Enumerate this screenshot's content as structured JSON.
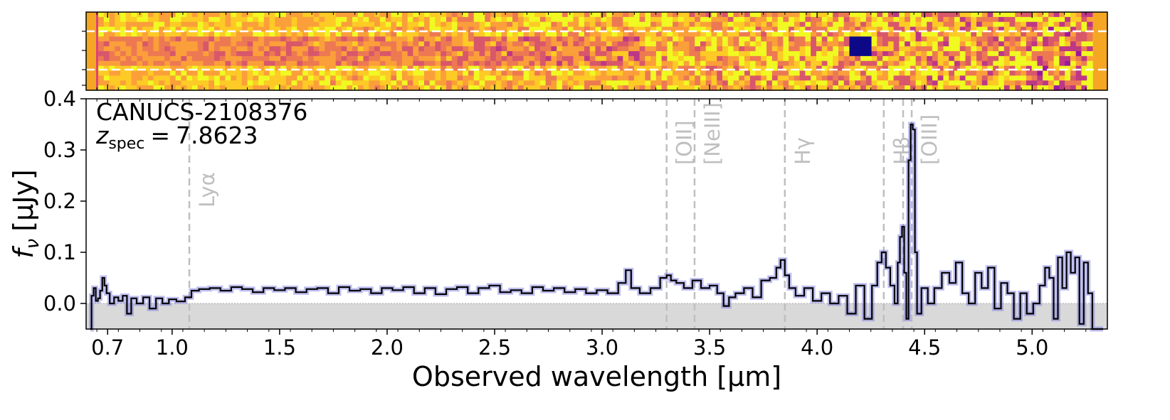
{
  "chart_data": {
    "type": "line",
    "object_name": "CANUCS-2108376",
    "redshift": {
      "symbol": "z",
      "subscript": "spec",
      "equals": "=",
      "value": "7.8623"
    },
    "xlabel": "Observed wavelength [μm]",
    "ylabel_symbol": "f",
    "ylabel_subscript": "ν",
    "ylabel_units": "[μJy]",
    "ylim": [
      -0.05,
      0.4
    ],
    "xlim": [
      0.6,
      5.35
    ],
    "x_ticks": [
      0.7,
      1.0,
      1.5,
      2.0,
      2.5,
      3.0,
      3.5,
      4.0,
      4.5,
      5.0
    ],
    "x_tick_labels": [
      "0.7",
      "1.0",
      "1.5",
      "2.0",
      "2.5",
      "3.0",
      "3.5",
      "4.0",
      "4.5",
      "5.0"
    ],
    "y_ticks": [
      0.0,
      0.1,
      0.2,
      0.3,
      0.4
    ],
    "y_tick_labels": [
      "0.0",
      "0.1",
      "0.2",
      "0.3",
      "0.4"
    ],
    "emission_lines": [
      {
        "label": "Lyα",
        "wavelength": 1.08
      },
      {
        "label": "[OII]",
        "wavelength": 3.3
      },
      {
        "label": "[NeIII]",
        "wavelength": 3.43
      },
      {
        "label": "Hγ",
        "wavelength": 3.85
      },
      {
        "label": "Hβ",
        "wavelength": 4.31
      },
      {
        "label": "",
        "wavelength": 4.4
      },
      {
        "label": "[OIII]",
        "wavelength": 4.44
      }
    ],
    "series": [
      {
        "name": "spectrum",
        "style": "step",
        "color": "#000000",
        "error_color": "#7070e0",
        "points": [
          [
            0.62,
            -0.05
          ],
          [
            0.63,
            0.015
          ],
          [
            0.64,
            0.03
          ],
          [
            0.65,
            0.005
          ],
          [
            0.66,
            0.01
          ],
          [
            0.67,
            0.025
          ],
          [
            0.68,
            0.05
          ],
          [
            0.69,
            0.035
          ],
          [
            0.7,
            0.02
          ],
          [
            0.72,
            0.0
          ],
          [
            0.74,
            0.012
          ],
          [
            0.76,
            0.005
          ],
          [
            0.78,
            0.015
          ],
          [
            0.8,
            -0.02
          ],
          [
            0.82,
            0.01
          ],
          [
            0.85,
            0.0
          ],
          [
            0.88,
            0.012
          ],
          [
            0.91,
            -0.01
          ],
          [
            0.94,
            0.01
          ],
          [
            0.97,
            0.0
          ],
          [
            1.0,
            0.008
          ],
          [
            1.04,
            0.004
          ],
          [
            1.08,
            0.012
          ],
          [
            1.1,
            0.025
          ],
          [
            1.15,
            0.028
          ],
          [
            1.2,
            0.03
          ],
          [
            1.25,
            0.025
          ],
          [
            1.3,
            0.032
          ],
          [
            1.35,
            0.028
          ],
          [
            1.4,
            0.022
          ],
          [
            1.45,
            0.03
          ],
          [
            1.5,
            0.026
          ],
          [
            1.55,
            0.03
          ],
          [
            1.6,
            0.022
          ],
          [
            1.65,
            0.028
          ],
          [
            1.7,
            0.03
          ],
          [
            1.75,
            0.02
          ],
          [
            1.8,
            0.032
          ],
          [
            1.85,
            0.025
          ],
          [
            1.9,
            0.028
          ],
          [
            1.95,
            0.02
          ],
          [
            2.0,
            0.03
          ],
          [
            2.05,
            0.026
          ],
          [
            2.1,
            0.032
          ],
          [
            2.15,
            0.02
          ],
          [
            2.2,
            0.03
          ],
          [
            2.25,
            0.018
          ],
          [
            2.3,
            0.028
          ],
          [
            2.35,
            0.032
          ],
          [
            2.4,
            0.02
          ],
          [
            2.45,
            0.03
          ],
          [
            2.5,
            0.035
          ],
          [
            2.55,
            0.022
          ],
          [
            2.6,
            0.026
          ],
          [
            2.65,
            0.02
          ],
          [
            2.7,
            0.032
          ],
          [
            2.75,
            0.025
          ],
          [
            2.8,
            0.03
          ],
          [
            2.85,
            0.022
          ],
          [
            2.9,
            0.028
          ],
          [
            2.95,
            0.02
          ],
          [
            3.0,
            0.026
          ],
          [
            3.05,
            0.02
          ],
          [
            3.1,
            0.04
          ],
          [
            3.12,
            0.065
          ],
          [
            3.15,
            0.03
          ],
          [
            3.2,
            0.02
          ],
          [
            3.25,
            0.03
          ],
          [
            3.29,
            0.05
          ],
          [
            3.31,
            0.055
          ],
          [
            3.33,
            0.045
          ],
          [
            3.36,
            0.04
          ],
          [
            3.4,
            0.03
          ],
          [
            3.44,
            0.045
          ],
          [
            3.48,
            0.03
          ],
          [
            3.52,
            0.035
          ],
          [
            3.55,
            0.02
          ],
          [
            3.58,
            -0.005
          ],
          [
            3.6,
            0.012
          ],
          [
            3.64,
            0.02
          ],
          [
            3.68,
            0.03
          ],
          [
            3.72,
            0.012
          ],
          [
            3.76,
            0.045
          ],
          [
            3.8,
            0.05
          ],
          [
            3.82,
            0.07
          ],
          [
            3.84,
            0.085
          ],
          [
            3.86,
            0.055
          ],
          [
            3.88,
            0.03
          ],
          [
            3.92,
            0.015
          ],
          [
            3.96,
            0.03
          ],
          [
            4.0,
            0.005
          ],
          [
            4.04,
            0.02
          ],
          [
            4.08,
            0.0
          ],
          [
            4.12,
            0.015
          ],
          [
            4.16,
            -0.02
          ],
          [
            4.2,
            0.035
          ],
          [
            4.24,
            -0.03
          ],
          [
            4.27,
            0.035
          ],
          [
            4.29,
            0.08
          ],
          [
            4.31,
            0.1
          ],
          [
            4.33,
            0.07
          ],
          [
            4.35,
            0.035
          ],
          [
            4.37,
            0.0
          ],
          [
            4.38,
            0.08
          ],
          [
            4.39,
            0.13
          ],
          [
            4.4,
            0.15
          ],
          [
            4.41,
            0.06
          ],
          [
            4.42,
            -0.03
          ],
          [
            4.43,
            0.28
          ],
          [
            4.44,
            0.35
          ],
          [
            4.45,
            0.34
          ],
          [
            4.46,
            0.1
          ],
          [
            4.47,
            -0.02
          ],
          [
            4.5,
            0.03
          ],
          [
            4.53,
            0.0
          ],
          [
            4.56,
            0.03
          ],
          [
            4.6,
            0.06
          ],
          [
            4.63,
            0.04
          ],
          [
            4.66,
            0.08
          ],
          [
            4.69,
            0.02
          ],
          [
            4.72,
            0.0
          ],
          [
            4.75,
            0.06
          ],
          [
            4.78,
            0.03
          ],
          [
            4.81,
            0.07
          ],
          [
            4.84,
            -0.01
          ],
          [
            4.87,
            0.04
          ],
          [
            4.9,
            0.02
          ],
          [
            4.93,
            -0.03
          ],
          [
            4.96,
            0.02
          ],
          [
            4.99,
            -0.02
          ],
          [
            5.02,
            0.0
          ],
          [
            5.05,
            0.035
          ],
          [
            5.07,
            0.07
          ],
          [
            5.09,
            0.05
          ],
          [
            5.11,
            -0.03
          ],
          [
            5.13,
            0.09
          ],
          [
            5.15,
            0.03
          ],
          [
            5.17,
            0.1
          ],
          [
            5.19,
            0.06
          ],
          [
            5.21,
            0.09
          ],
          [
            5.23,
            -0.04
          ],
          [
            5.25,
            0.08
          ],
          [
            5.27,
            0.02
          ],
          [
            5.29,
            -0.05
          ],
          [
            5.33,
            -0.05
          ]
        ]
      }
    ],
    "image_panel": {
      "type": "2D spectrum",
      "colormap": "plasma"
    }
  }
}
